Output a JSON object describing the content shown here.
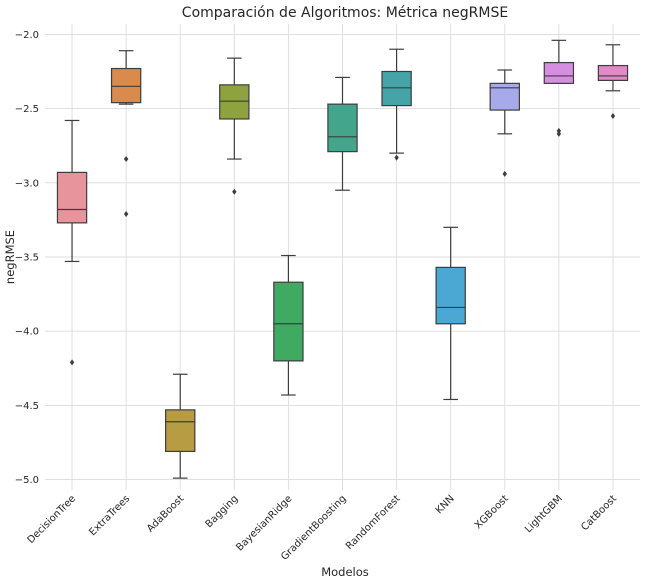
{
  "chart_data": {
    "type": "box",
    "title": "Comparación de Algoritmos: Métrica negRMSE",
    "xlabel": "Modelos",
    "ylabel": "negRMSE",
    "ylim": [
      -5.07,
      -1.93
    ],
    "yticks": [
      -5.0,
      -4.5,
      -4.0,
      -3.5,
      -3.0,
      -2.5,
      -2.0
    ],
    "ytick_labels": [
      "−5.0",
      "−4.5",
      "−4.0",
      "−3.5",
      "−3.0",
      "−2.5",
      "−2.0"
    ],
    "grid": true,
    "categories": [
      "DecisionTree",
      "ExtraTrees",
      "AdaBoost",
      "Bagging",
      "BayesianRidge",
      "GradientBoosting",
      "RandomForest",
      "KNN",
      "XGBoost",
      "LightGBM",
      "CatBoost"
    ],
    "boxes": [
      {
        "name": "DecisionTree",
        "color": "#e8949d",
        "whisker_low": -3.53,
        "q1": -3.27,
        "median": -3.18,
        "q3": -2.93,
        "whisker_high": -2.58,
        "outliers": [
          -4.21
        ]
      },
      {
        "name": "ExtraTrees",
        "color": "#da8b4b",
        "whisker_low": -2.47,
        "q1": -2.46,
        "median": -2.35,
        "q3": -2.23,
        "whisker_high": -2.11,
        "outliers": [
          -2.84,
          -3.21
        ]
      },
      {
        "name": "AdaBoost",
        "color": "#b79c43",
        "whisker_low": -4.99,
        "q1": -4.81,
        "median": -4.61,
        "q3": -4.53,
        "whisker_high": -4.29,
        "outliers": []
      },
      {
        "name": "Bagging",
        "color": "#8ea240",
        "whisker_low": -2.84,
        "q1": -2.57,
        "median": -2.45,
        "q3": -2.34,
        "whisker_high": -2.16,
        "outliers": [
          -3.06
        ]
      },
      {
        "name": "BayesianRidge",
        "color": "#3eaa62",
        "whisker_low": -4.43,
        "q1": -4.2,
        "median": -3.95,
        "q3": -3.67,
        "whisker_high": -3.49,
        "outliers": []
      },
      {
        "name": "GradientBoosting",
        "color": "#43a68c",
        "whisker_low": -3.05,
        "q1": -2.79,
        "median": -2.69,
        "q3": -2.47,
        "whisker_high": -2.29,
        "outliers": []
      },
      {
        "name": "RandomForest",
        "color": "#45a4a8",
        "whisker_low": -2.8,
        "q1": -2.48,
        "median": -2.36,
        "q3": -2.25,
        "whisker_high": -2.1,
        "outliers": [
          -2.83
        ]
      },
      {
        "name": "KNN",
        "color": "#4aa8d3",
        "whisker_low": -4.46,
        "q1": -3.95,
        "median": -3.84,
        "q3": -3.57,
        "whisker_high": -3.3,
        "outliers": []
      },
      {
        "name": "XGBoost",
        "color": "#a6aaea",
        "whisker_low": -2.67,
        "q1": -2.51,
        "median": -2.36,
        "q3": -2.33,
        "whisker_high": -2.24,
        "outliers": [
          -2.94
        ]
      },
      {
        "name": "LightGBM",
        "color": "#d68fe0",
        "whisker_low": -2.33,
        "q1": -2.33,
        "median": -2.28,
        "q3": -2.19,
        "whisker_high": -2.04,
        "outliers": [
          -2.65,
          -2.67
        ]
      },
      {
        "name": "CatBoost",
        "color": "#e389c8",
        "whisker_low": -2.38,
        "q1": -2.31,
        "median": -2.28,
        "q3": -2.21,
        "whisker_high": -2.07,
        "outliers": [
          -2.55
        ]
      }
    ]
  }
}
